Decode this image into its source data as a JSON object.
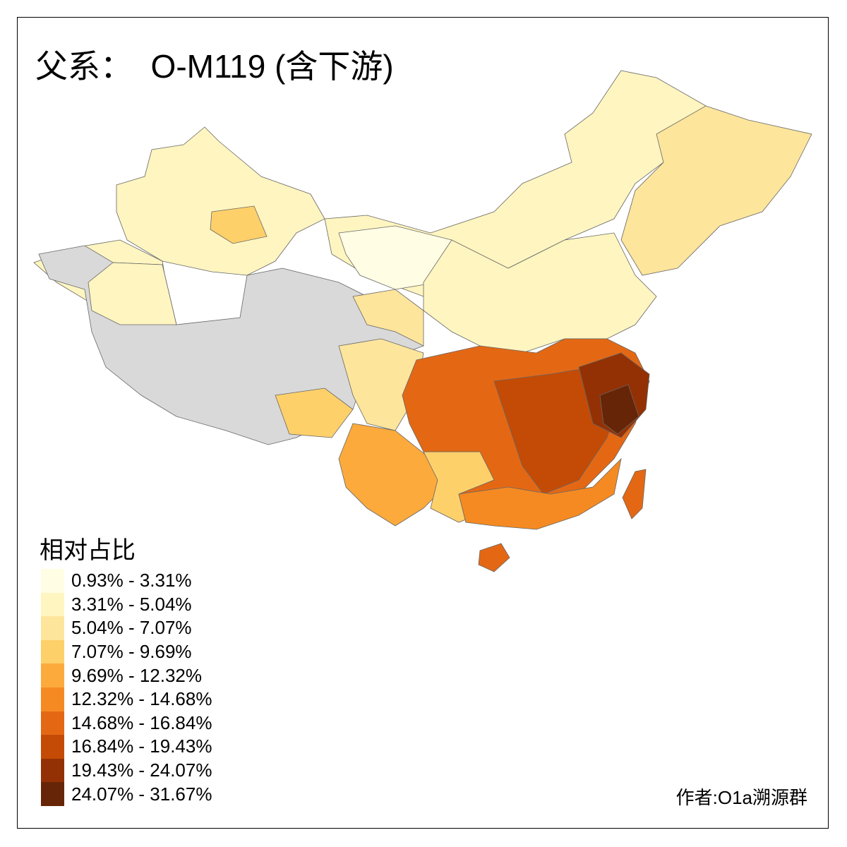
{
  "title": "父系：  O-M119 (含下游)",
  "legend": {
    "title": "相对占比",
    "items": [
      {
        "label": "0.93% - 3.31%",
        "color": "#FFFDE3"
      },
      {
        "label": "3.31% - 5.04%",
        "color": "#FFF5C0"
      },
      {
        "label": "5.04% - 7.07%",
        "color": "#FEE59C"
      },
      {
        "label": "7.07% - 9.69%",
        "color": "#FED06A"
      },
      {
        "label": "9.69% - 12.32%",
        "color": "#FDAA3C"
      },
      {
        "label": "12.32% - 14.68%",
        "color": "#F58A22"
      },
      {
        "label": "14.68% - 16.84%",
        "color": "#E46814"
      },
      {
        "label": "16.84% - 19.43%",
        "color": "#C44B05"
      },
      {
        "label": "19.43% - 24.07%",
        "color": "#933104"
      },
      {
        "label": "24.07% - 31.67%",
        "color": "#662506"
      }
    ]
  },
  "no_data_color": "#D9D9D9",
  "author": "作者:O1a溯源群"
}
